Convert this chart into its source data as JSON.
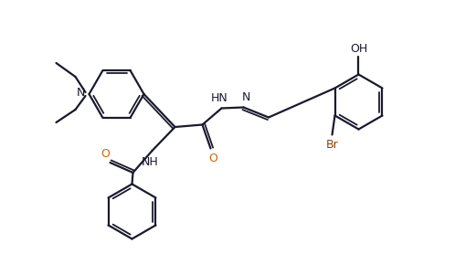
{
  "bg": "#ffffff",
  "lc": "#1a1a2e",
  "br_c": "#8B4500",
  "o_c": "#cc6600",
  "lw": 1.6,
  "lw_inner": 1.3,
  "xlim": [
    0,
    9.96
  ],
  "ylim": [
    0,
    5.78
  ]
}
